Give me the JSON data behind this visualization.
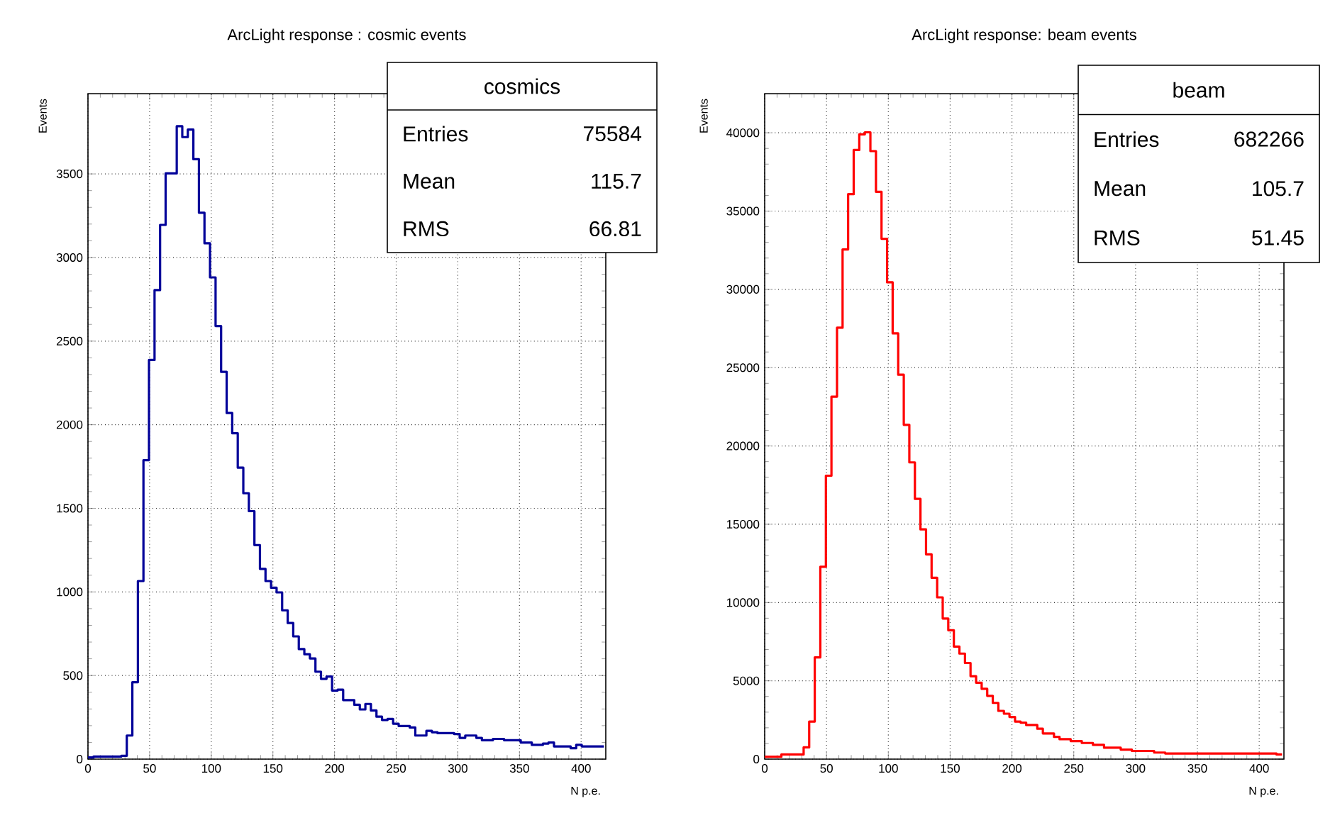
{
  "chart_data": [
    {
      "type": "histogram",
      "title": "ArcLight response : cosmic events",
      "xlabel": "N p.e.",
      "ylabel": "Events",
      "color": "#000099",
      "bins": [
        0,
        4.5,
        9,
        13.5,
        18,
        22.5,
        27,
        31.5,
        36,
        40.5,
        45,
        49.5,
        54,
        58.5,
        63,
        67.5,
        72,
        76.5,
        81,
        85.5,
        90,
        94.5,
        99,
        103.5,
        108,
        112.5,
        117,
        121.5,
        126,
        130.5,
        135,
        139.5,
        144,
        148.5,
        153,
        157.5,
        162,
        166.5,
        171,
        175.5,
        180,
        184.5,
        189,
        193.5,
        198,
        202.5,
        207,
        211.5,
        216,
        220.5,
        225,
        229.5,
        234,
        238.5,
        243,
        247.5,
        252,
        256.5,
        261,
        265.5,
        270,
        274.5,
        279,
        283.5,
        288,
        292.5,
        297,
        301.5,
        306,
        310.5,
        315,
        319.5,
        324,
        328.5,
        333,
        337.5,
        342,
        346.5,
        351,
        355.5,
        360,
        364.5,
        369,
        373.5,
        378,
        382.5,
        387,
        391.5,
        396,
        400.5,
        405,
        409.5,
        414,
        418.5
      ],
      "values": [
        10,
        15,
        15,
        15,
        15,
        15,
        20,
        141,
        460,
        1065,
        1788,
        2387,
        2805,
        3195,
        3503,
        3503,
        3785,
        3720,
        3765,
        3588,
        3268,
        3085,
        2881,
        2590,
        2316,
        2070,
        1949,
        1743,
        1590,
        1483,
        1280,
        1138,
        1065,
        1025,
        997,
        890,
        814,
        734,
        658,
        627,
        602,
        523,
        480,
        494,
        410,
        415,
        353,
        353,
        325,
        297,
        330,
        291,
        254,
        234,
        240,
        212,
        198,
        198,
        189,
        141,
        141,
        169,
        161,
        155,
        155,
        155,
        150,
        127,
        141,
        141,
        127,
        113,
        113,
        121,
        121,
        113,
        113,
        113,
        99,
        99,
        85,
        85,
        93,
        99,
        76,
        76,
        76,
        65,
        85,
        76,
        76,
        76,
        76
      ],
      "xlim": [
        0,
        420
      ],
      "ylim": [
        0,
        3980
      ],
      "xticks": [
        0,
        50,
        100,
        150,
        200,
        250,
        300,
        350,
        400
      ],
      "yticks": [
        0,
        500,
        1000,
        1500,
        2000,
        2500,
        3000,
        3500
      ],
      "grid": true,
      "annotations": [
        "cosmics",
        "Entries",
        "75584",
        "Mean",
        "115.7",
        "RMS",
        "66.81"
      ]
    },
    {
      "type": "histogram",
      "title": "ArcLight response: beam events",
      "xlabel": "N p.e.",
      "ylabel": "Events",
      "color": "#ff0000",
      "bins": [
        0,
        4.5,
        9,
        13.5,
        18,
        22.5,
        27,
        31.5,
        36,
        40.5,
        45,
        49.5,
        54,
        58.5,
        63,
        67.5,
        72,
        76.5,
        81,
        85.5,
        90,
        94.5,
        99,
        103.5,
        108,
        112.5,
        117,
        121.5,
        126,
        130.5,
        135,
        139.5,
        144,
        148.5,
        153,
        157.5,
        162,
        166.5,
        171,
        175.5,
        180,
        184.5,
        189,
        193.5,
        198,
        202.5,
        207,
        211.5,
        216,
        220.5,
        225,
        229.5,
        234,
        238.5,
        243,
        247.5,
        252,
        256.5,
        261,
        265.5,
        270,
        274.5,
        279,
        283.5,
        288,
        292.5,
        297,
        301.5,
        306,
        310.5,
        315,
        319.5,
        324,
        328.5,
        333,
        337.5,
        342,
        346.5,
        351,
        355.5,
        360,
        364.5,
        369,
        373.5,
        378,
        382.5,
        387,
        391.5,
        396,
        400.5,
        405,
        409.5,
        414,
        418.5
      ],
      "values": [
        150,
        150,
        150,
        300,
        300,
        300,
        300,
        750,
        2400,
        6500,
        12280,
        18100,
        23150,
        27550,
        32550,
        36080,
        38900,
        39900,
        40030,
        38830,
        36230,
        33230,
        30450,
        27190,
        24550,
        21350,
        18950,
        16620,
        14670,
        13080,
        11580,
        10330,
        8980,
        8230,
        7190,
        6740,
        6140,
        5300,
        4880,
        4490,
        4040,
        3590,
        3080,
        2900,
        2690,
        2400,
        2330,
        2180,
        2180,
        1940,
        1640,
        1640,
        1420,
        1270,
        1270,
        1150,
        1150,
        1030,
        1030,
        910,
        910,
        730,
        730,
        730,
        610,
        610,
        520,
        520,
        520,
        520,
        420,
        420,
        360,
        360,
        360,
        360,
        360,
        360,
        360,
        360,
        360,
        360,
        360,
        360,
        360,
        360,
        360,
        360,
        360,
        360,
        360,
        360,
        300
      ],
      "xlim": [
        0,
        420
      ],
      "ylim": [
        0,
        42500
      ],
      "xticks": [
        0,
        50,
        100,
        150,
        200,
        250,
        300,
        350,
        400
      ],
      "yticks": [
        0,
        5000,
        10000,
        15000,
        20000,
        25000,
        30000,
        35000,
        40000
      ],
      "grid": true,
      "annotations": [
        "beam",
        "Entries",
        "682266",
        "Mean",
        "105.7",
        "RMS",
        "51.45"
      ]
    }
  ]
}
